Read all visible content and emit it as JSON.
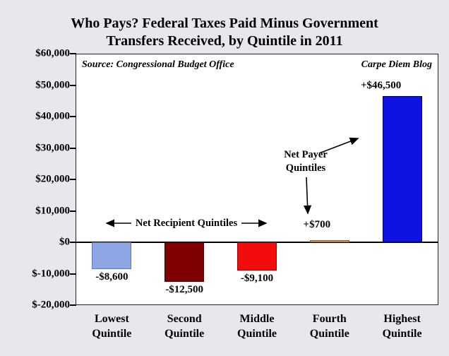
{
  "title": {
    "line1": "Who Pays? Federal Taxes Paid Minus Government",
    "line2": "Transfers Received, by Quintile in 2011"
  },
  "annotations": {
    "source": "Source: Congressional Budget Office",
    "blog": "Carpe Diem Blog",
    "net_payer_line1": "Net Payer",
    "net_payer_line2": "Quintiles",
    "net_recipient": "Net Recipient Quintiles"
  },
  "chart_data": {
    "type": "bar",
    "title": "Who Pays? Federal Taxes Paid Minus Government Transfers Received, by Quintile in 2011",
    "categories": [
      [
        "Lowest",
        "Quintile"
      ],
      [
        "Second",
        "Quintile"
      ],
      [
        "Middle",
        "Quintile"
      ],
      [
        "Fourth",
        "Quintile"
      ],
      [
        "Highest",
        "Quintile"
      ]
    ],
    "values": [
      -8600,
      -12500,
      -9100,
      700,
      46500
    ],
    "value_labels": [
      "-$8,600",
      "-$12,500",
      "-$9,100",
      "+$700",
      "+$46,500"
    ],
    "bar_colors": [
      "#8da5e3",
      "#7f0000",
      "#f20d0d",
      "#d8a57e",
      "#0d12e0"
    ],
    "bar_border_colors": [
      "#5b7bbf",
      "#4a0000",
      "#a80000",
      "#8a5a33",
      "#00007f"
    ],
    "xlabel": "",
    "ylabel": "",
    "ylim": [
      -20000,
      60000
    ],
    "yticks": [
      60000,
      50000,
      40000,
      30000,
      20000,
      10000,
      0,
      -10000,
      -20000
    ],
    "ytick_labels": [
      "$60,000",
      "$50,000",
      "$40,000",
      "$30,000",
      "$20,000",
      "$10,000",
      "$0",
      "$-10,000",
      "$-20,000"
    ],
    "grid": false,
    "legend": null
  },
  "colors": {
    "page_bg": "#e9e6ed",
    "plot_bg": "#ffffff",
    "axis": "#000000",
    "text": "#000000"
  }
}
